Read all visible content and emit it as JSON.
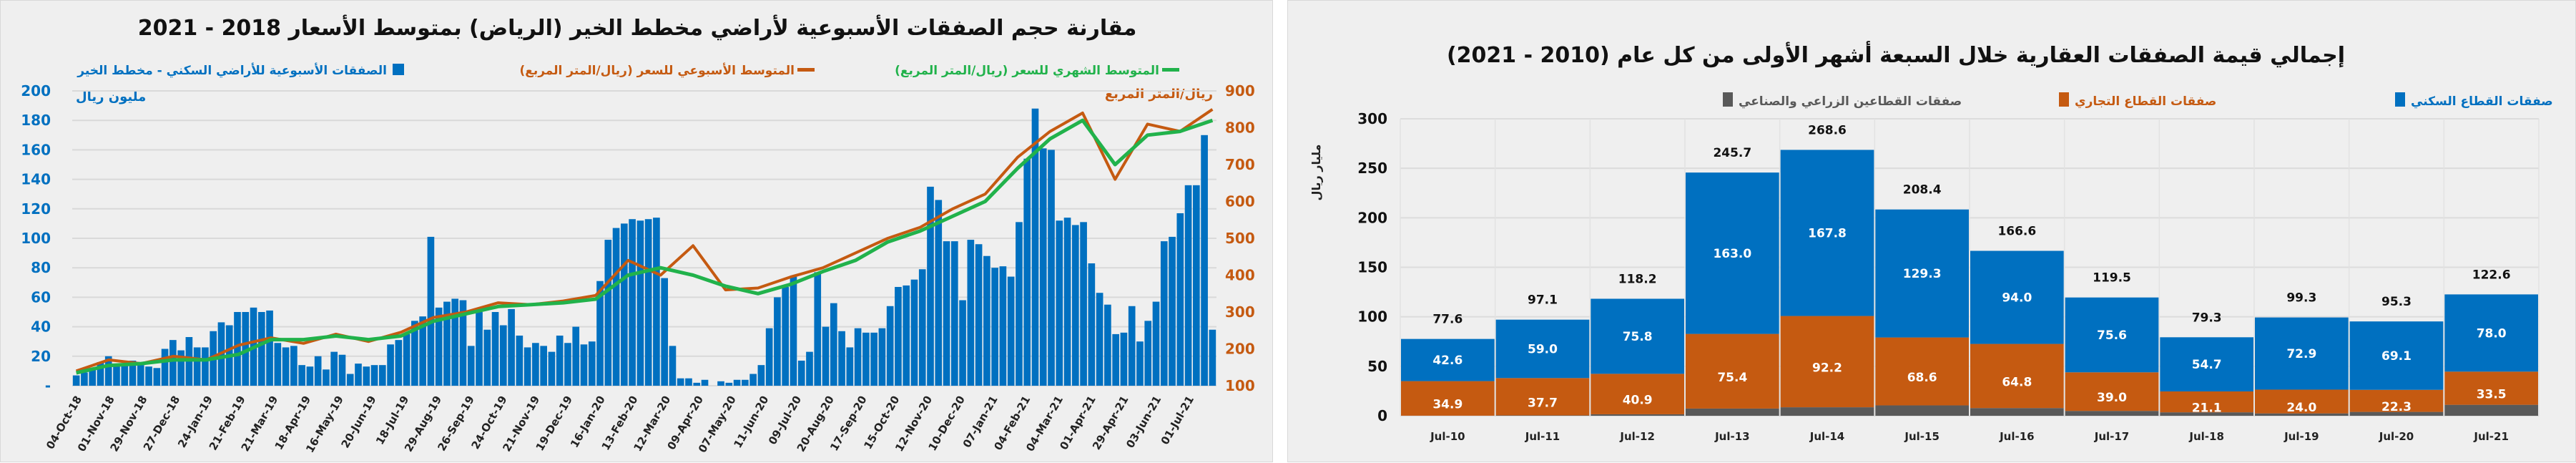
{
  "charts": {
    "left": {
      "title": "مقارنة حجم الصفقات الأسبوعية لأراضي مخطط الخير (الرياض) بمتوسط الأسعار 2018 - 2021",
      "legend": [
        {
          "label": "الصفقات الأسبوعية للأراضي السكني - مخطط الخير",
          "color": "#0070c0",
          "marker": "square"
        },
        {
          "label": "المتوسط الأسبوعي للسعر (ريال/المتر المربع)",
          "color": "#c55a11",
          "marker": "line"
        },
        {
          "label": "المتوسط الشهري للسعر (ريال/المتر المربع)",
          "color": "#21b24b",
          "marker": "line"
        }
      ],
      "ylabel_left": "مليون ريال",
      "ylabel_right": "ريال/المتر المربع",
      "yticks_left": [
        "-",
        "20",
        "40",
        "60",
        "80",
        "100",
        "120",
        "140",
        "160",
        "180",
        "200"
      ],
      "yticks_right": [
        "100",
        "200",
        "300",
        "400",
        "500",
        "600",
        "700",
        "800",
        "900"
      ]
    },
    "right": {
      "title": "إجمالي قيمة الصفقات العقارية خلال السبعة أشهر الأولى من كل عام (2010 - 2021)",
      "legend": [
        {
          "label": "صفقات القطاع السكني",
          "color": "#0070c0"
        },
        {
          "label": "صفقات القطاع التجاري",
          "color": "#c55a11"
        },
        {
          "label": "صفقات القطاعين الزراعي والصناعي",
          "color": "#595959"
        }
      ],
      "ylabel": "مليار ريال",
      "yticks": [
        "0",
        "50",
        "100",
        "150",
        "200",
        "250",
        "300"
      ]
    }
  },
  "chart_data": [
    {
      "type": "bar+line",
      "title": "مقارنة حجم الصفقات الأسبوعية لأراضي مخطط الخير (الرياض) بمتوسط الأسعار 2018 - 2021",
      "x_tick_labels": [
        "04-Oct-18",
        "01-Nov-18",
        "29-Nov-18",
        "27-Dec-18",
        "24-Jan-19",
        "21-Feb-19",
        "21-Mar-19",
        "18-Apr-19",
        "16-May-19",
        "20-Jun-19",
        "18-Jul-19",
        "29-Aug-19",
        "26-Sep-19",
        "24-Oct-19",
        "21-Nov-19",
        "19-Dec-19",
        "16-Jan-20",
        "13-Feb-20",
        "12-Mar-20",
        "09-Apr-20",
        "07-May-20",
        "11-Jun-20",
        "09-Jul-20",
        "20-Aug-20",
        "17-Sep-20",
        "15-Oct-20",
        "12-Nov-20",
        "10-Dec-20",
        "07-Jan-21",
        "04-Feb-21",
        "04-Mar-21",
        "01-Apr-21",
        "29-Apr-21",
        "03-Jun-21",
        "01-Jul-21"
      ],
      "ylim_left": [
        0,
        200
      ],
      "ylim_right": [
        100,
        900
      ],
      "ylabel_left": "مليون ريال",
      "ylabel_right": "ريال/المتر المربع",
      "grid": true,
      "legend_position": "top",
      "series": [
        {
          "name": "الصفقات الأسبوعية للأراضي السكني - مخطط الخير",
          "type": "bar",
          "axis": "left",
          "color": "#0070c0",
          "values": [
            7,
            9,
            12,
            16,
            20,
            14,
            15,
            17,
            14,
            13,
            12,
            25,
            31,
            24,
            33,
            26,
            26,
            37,
            43,
            41,
            50,
            50,
            53,
            50,
            51,
            29,
            26,
            27,
            14,
            13,
            20,
            11,
            23,
            21,
            8,
            15,
            13,
            14,
            14,
            28,
            31,
            35,
            44,
            47,
            101,
            53,
            57,
            59,
            58,
            27,
            50,
            38,
            50,
            41,
            52,
            34,
            26,
            29,
            27,
            23,
            34,
            29,
            40,
            28,
            30,
            71,
            99,
            107,
            110,
            113,
            112,
            113,
            114,
            73,
            27,
            5,
            5,
            2,
            4,
            0,
            3,
            2,
            4,
            4,
            8,
            14,
            39,
            60,
            67,
            74,
            17,
            23,
            77,
            40,
            56,
            37,
            26,
            39,
            36,
            36,
            39,
            54,
            67,
            68,
            72,
            79,
            135,
            126,
            98,
            98,
            58,
            99,
            96,
            88,
            80,
            81,
            74,
            111,
            154,
            188,
            161,
            160,
            112,
            114,
            109,
            111,
            83,
            63,
            55,
            35,
            36,
            54,
            30,
            44,
            57,
            98,
            101,
            117,
            136,
            136,
            170,
            38
          ]
        },
        {
          "name": "المتوسط الأسبوعي للسعر (ريال/المتر المربع)",
          "type": "line",
          "axis": "right",
          "color": "#c55a11",
          "values": [
            140,
            170,
            160,
            180,
            170,
            210,
            230,
            215,
            240,
            220,
            245,
            285,
            300,
            325,
            320,
            330,
            345,
            440,
            400,
            480,
            360,
            365,
            395,
            420,
            460,
            500,
            530,
            580,
            620,
            720,
            790,
            840,
            660,
            810,
            790,
            850
          ]
        },
        {
          "name": "المتوسط الشهري للسعر (ريال/المتر المربع)",
          "type": "line",
          "axis": "right",
          "color": "#21b24b",
          "values": [
            135,
            155,
            160,
            170,
            170,
            185,
            225,
            225,
            235,
            225,
            235,
            275,
            295,
            315,
            320,
            325,
            335,
            400,
            420,
            400,
            370,
            350,
            375,
            410,
            440,
            490,
            520,
            560,
            600,
            690,
            770,
            820,
            700,
            780,
            790,
            820
          ]
        }
      ]
    },
    {
      "type": "bar",
      "stacked": true,
      "title": "إجمالي قيمة الصفقات العقارية خلال السبعة أشهر الأولى من كل عام (2010 - 2021)",
      "categories": [
        "Jul-10",
        "Jul-11",
        "Jul-12",
        "Jul-13",
        "Jul-14",
        "Jul-15",
        "Jul-16",
        "Jul-17",
        "Jul-18",
        "Jul-19",
        "Jul-20",
        "Jul-21"
      ],
      "ylabel": "مليار ريال",
      "ylim": [
        0,
        300
      ],
      "grid": true,
      "legend_position": "top",
      "totals": [
        "77.6",
        "97.1",
        "118.2",
        "245.7",
        "268.6",
        "208.4",
        "166.6",
        "119.5",
        "79.3",
        "99.3",
        "95.3",
        "122.6"
      ],
      "series": [
        {
          "name": "صفقات القطاعين الزراعي والصناعي",
          "color": "#595959",
          "values": [
            0.1,
            0.4,
            1.5,
            7.3,
            8.6,
            10.5,
            7.8,
            4.9,
            3.5,
            2.4,
            3.9,
            11.1
          ],
          "labels": []
        },
        {
          "name": "صفقات القطاع التجاري",
          "color": "#c55a11",
          "values": [
            34.9,
            37.7,
            40.9,
            75.4,
            92.2,
            68.6,
            64.8,
            39.0,
            21.1,
            24.0,
            22.3,
            33.5
          ],
          "labels": [
            "34.9",
            "37.7",
            "40.9",
            "75.4",
            "92.2",
            "68.6",
            "64.8",
            "39.0",
            "21.1",
            "24.0",
            "22.3",
            "33.5"
          ]
        },
        {
          "name": "صفقات القطاع السكني",
          "color": "#0070c0",
          "values": [
            42.6,
            59.0,
            75.8,
            163.0,
            167.8,
            129.3,
            94.0,
            75.6,
            54.7,
            72.9,
            69.1,
            78.0
          ],
          "labels": [
            "42.6",
            "59.0",
            "75.8",
            "163.0",
            "167.8",
            "129.3",
            "94.0",
            "75.6",
            "54.7",
            "72.9",
            "69.1",
            "78.0"
          ]
        }
      ]
    }
  ]
}
